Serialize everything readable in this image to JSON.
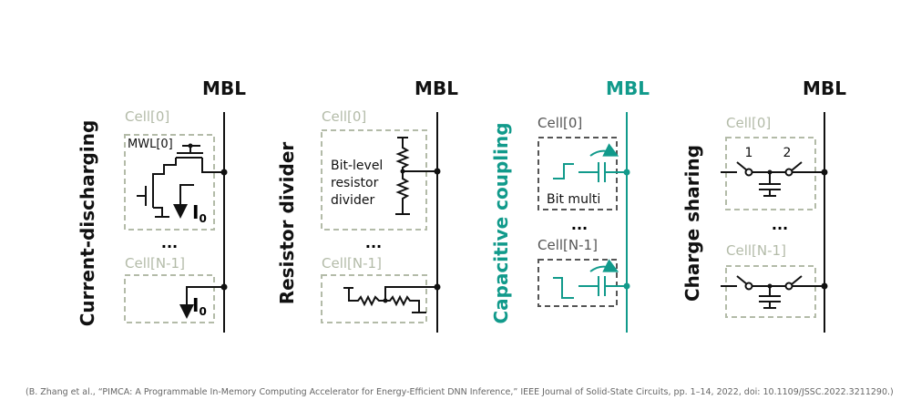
{
  "colors": {
    "accent": "#119a8b",
    "ink": "#111111",
    "cell_gray": "#b3bba8",
    "box_dark": "#555555"
  },
  "panels": [
    {
      "title": "Current-discharging",
      "mbl": "MBL",
      "cell0": "Cell[0]",
      "celln": "Cell[N-1]",
      "wordline": "MWL[0]",
      "current": "I",
      "current_sub": "0",
      "dots": "..."
    },
    {
      "title": "Resistor divider",
      "mbl": "MBL",
      "cell0": "Cell[0]",
      "celln": "Cell[N-1]",
      "desc": [
        "Bit-level",
        "resistor",
        "divider"
      ],
      "dots": "..."
    },
    {
      "title": "Capacitive coupling",
      "mbl": "MBL",
      "cell0": "Cell[0]",
      "celln": "Cell[N-1]",
      "desc": "Bit multi",
      "dots": "...",
      "highlighted": true
    },
    {
      "title": "Charge sharing",
      "mbl": "MBL",
      "cell0": "Cell[0]",
      "celln": "Cell[N-1]",
      "switch1": "1",
      "switch2": "2",
      "dots": "..."
    }
  ],
  "citation": "(B. Zhang et al., “PIMCA: A Programmable In-Memory Computing Accelerator for Energy-Efficient DNN Inference,” IEEE Journal of Solid-State Circuits, pp. 1–14, 2022, doi: 10.1109/JSSC.2022.3211290.)"
}
